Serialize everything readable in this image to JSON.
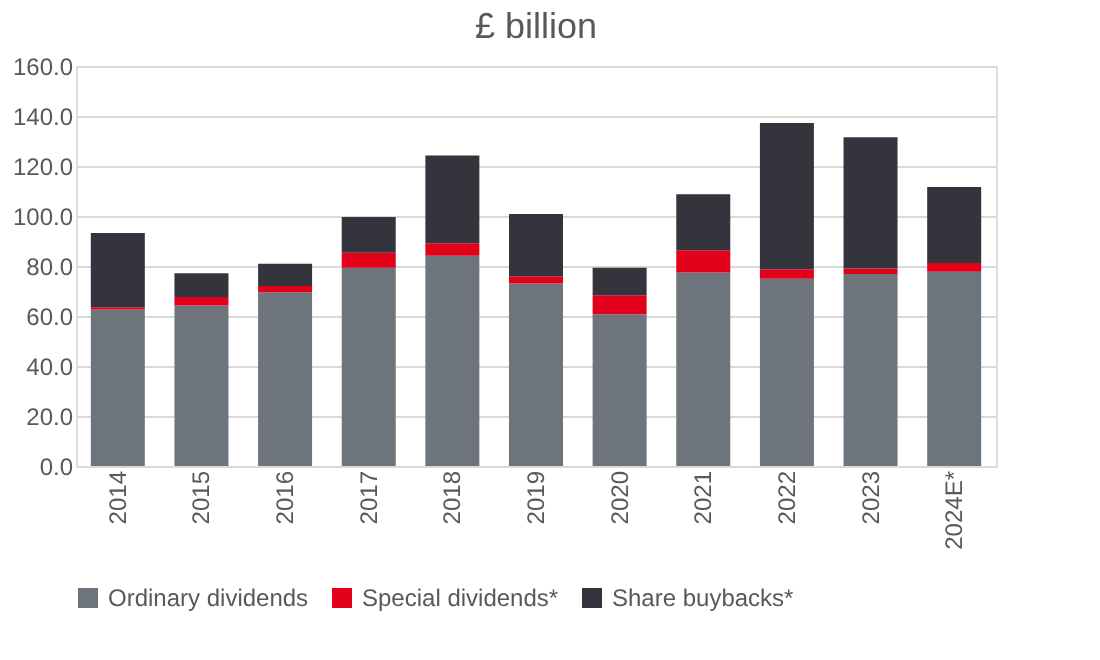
{
  "chart_data": {
    "type": "bar",
    "title": "£ billion",
    "stacked": true,
    "categories": [
      "2014",
      "2015",
      "2016",
      "2017",
      "2018",
      "2019",
      "2020",
      "2021",
      "2022",
      "2023",
      "2024E*"
    ],
    "series": [
      {
        "name": "Ordinary dividends",
        "color": "#6d747b",
        "values": [
          62.6,
          64.2,
          69.5,
          79.3,
          84.1,
          73.0,
          60.7,
          77.4,
          74.9,
          76.8,
          77.7
        ]
      },
      {
        "name": "Special dividends*",
        "color": "#e3001b",
        "values": [
          0.9,
          3.4,
          2.5,
          6.0,
          5.0,
          2.9,
          7.6,
          8.9,
          3.8,
          2.2,
          3.5
        ]
      },
      {
        "name": "Share buybacks*",
        "color": "#34343d",
        "values": [
          29.7,
          9.5,
          8.9,
          14.3,
          35.1,
          24.9,
          11.0,
          22.4,
          58.5,
          52.5,
          30.4
        ]
      }
    ],
    "ylim": [
      0,
      160
    ],
    "yticks": [
      {
        "value": 0,
        "label": "0.0"
      },
      {
        "value": 20,
        "label": "20.0"
      },
      {
        "value": 40,
        "label": "40.0"
      },
      {
        "value": 60,
        "label": "60.0"
      },
      {
        "value": 80,
        "label": "80.0"
      },
      {
        "value": 100,
        "label": "100.0"
      },
      {
        "value": 120,
        "label": "120.0"
      },
      {
        "value": 140,
        "label": "140.0"
      },
      {
        "value": 160,
        "label": "160.0"
      }
    ],
    "grid": "y",
    "legend": "bottom"
  }
}
